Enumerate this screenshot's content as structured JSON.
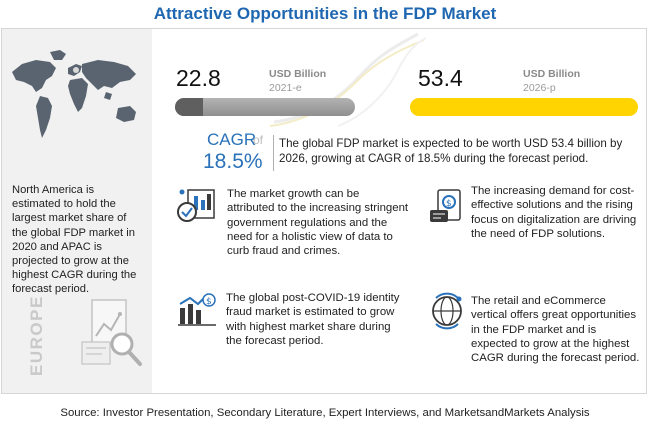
{
  "title": "Attractive Opportunities in the FDP Market",
  "market_2021": {
    "value": "22.8",
    "unit": "USD Billion",
    "year": "2021-e"
  },
  "market_2026": {
    "value": "53.4",
    "unit": "USD Billion",
    "year": "2026-p"
  },
  "cagr": {
    "label": "CAGR",
    "of": "of",
    "value": "18.5%",
    "text": "The global FDP market is expected to be worth USD 53.4 billion by 2026, growing at CAGR of 18.5% during the forecast period."
  },
  "region": {
    "text": "North America is estimated to hold the largest market share of the global FDP market in 2020 and APAC is projected to grow at the highest CAGR during the forecast period.",
    "watermark": "EUROPE"
  },
  "insights": [
    {
      "icon": "regulation-icon",
      "text": "The market growth can be attributed to the increasing stringent government regulations and the need for a holistic view of data to curb fraud and crimes."
    },
    {
      "icon": "cost-money-icon",
      "text": "The increasing demand for cost-effective solutions and the rising focus on digitalization are driving the need of FDP solutions."
    },
    {
      "icon": "identity-growth-icon",
      "text": "The global post-COVID-19 identity  fraud market is estimated to grow with highest market share during the forecast period."
    },
    {
      "icon": "ecommerce-globe-icon",
      "text": "The retail and eCommerce vertical offers great opportunities in the FDP market and is expected to grow at the highest CAGR during the forecast period."
    }
  ],
  "source": "Source: Investor Presentation, Secondary Literature, Expert Interviews, and MarketsandMarkets Analysis",
  "colors": {
    "title": "#1f67b1",
    "accent_blue": "#2a72ba",
    "bar_yellow": "#ffd400",
    "bar_grey": "#9e9e9e",
    "panel_bg": "#f1f1f1"
  }
}
